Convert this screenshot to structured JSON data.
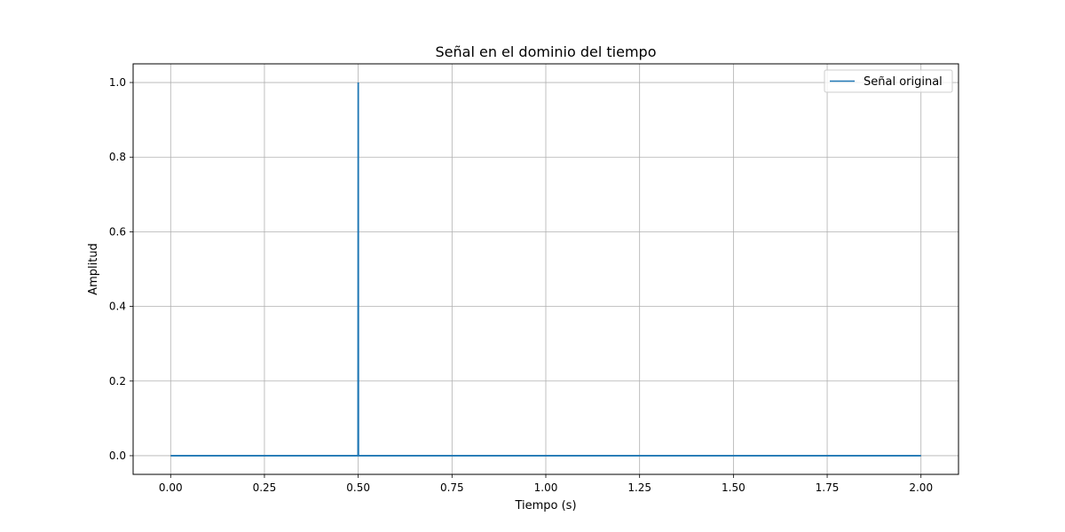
{
  "chart_data": {
    "type": "line",
    "title": "Señal en el dominio del tiempo",
    "xlabel": "Tiempo (s)",
    "ylabel": "Amplitud",
    "xlim": [
      -0.1,
      2.1
    ],
    "ylim": [
      -0.05,
      1.05
    ],
    "xticks": [
      0.0,
      0.25,
      0.5,
      0.75,
      1.0,
      1.25,
      1.5,
      1.75,
      2.0
    ],
    "xtick_labels": [
      "0.00",
      "0.25",
      "0.50",
      "0.75",
      "1.00",
      "1.25",
      "1.50",
      "1.75",
      "2.00"
    ],
    "yticks": [
      0.0,
      0.2,
      0.4,
      0.6,
      0.8,
      1.0
    ],
    "ytick_labels": [
      "0.0",
      "0.2",
      "0.4",
      "0.6",
      "0.8",
      "1.0"
    ],
    "grid": true,
    "legend_position": "top-right",
    "series": [
      {
        "name": "Señal original",
        "color": "#1f77b4",
        "x": [
          0.0,
          0.4995,
          0.5,
          0.5005,
          2.0
        ],
        "y": [
          0.0,
          0.0,
          1.0,
          0.0,
          0.0
        ]
      }
    ]
  }
}
